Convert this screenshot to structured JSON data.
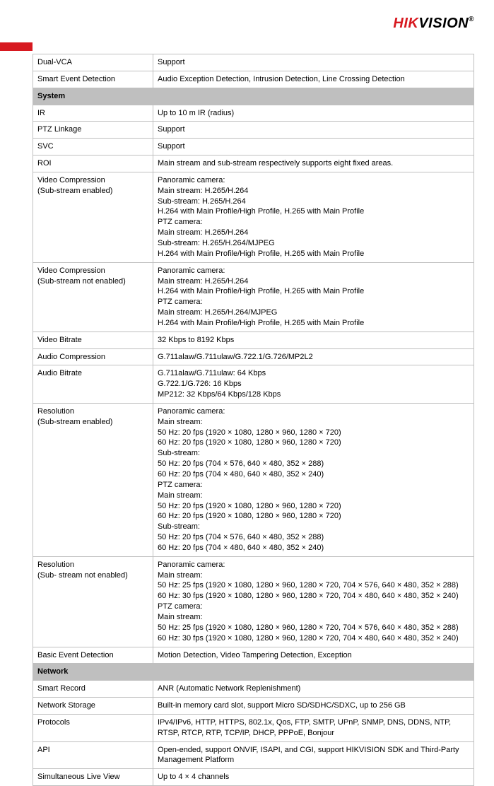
{
  "logo": {
    "part1": "HIK",
    "part2": "VISION",
    "reg": "®"
  },
  "table": {
    "rows": [
      {
        "type": "kv",
        "key": "Dual-VCA",
        "value": "Support"
      },
      {
        "type": "kv",
        "key": "Smart Event Detection",
        "value": "Audio Exception Detection, Intrusion Detection, Line Crossing Detection"
      },
      {
        "type": "section",
        "title": "System"
      },
      {
        "type": "kv",
        "key": "IR",
        "value": "Up to 10 m IR (radius)"
      },
      {
        "type": "kv",
        "key": "PTZ Linkage",
        "value": "Support"
      },
      {
        "type": "kv",
        "key": "SVC",
        "value": "Support"
      },
      {
        "type": "kv",
        "key": "ROI",
        "value": "Main stream and sub-stream respectively supports eight fixed areas."
      },
      {
        "type": "kv",
        "key": "Video Compression\n(Sub-stream enabled)",
        "value": "Panoramic camera:\nMain stream: H.265/H.264\nSub-stream: H.265/H.264\nH.264 with Main Profile/High Profile, H.265 with Main Profile\nPTZ camera:\nMain stream: H.265/H.264\nSub-stream: H.265/H.264/MJPEG\nH.264 with Main Profile/High Profile, H.265 with Main Profile"
      },
      {
        "type": "kv",
        "key": "Video Compression\n(Sub-stream not enabled)",
        "value": "Panoramic camera:\nMain stream: H.265/H.264\nH.264 with Main Profile/High Profile, H.265 with Main Profile\nPTZ camera:\nMain stream: H.265/H.264/MJPEG\nH.264 with Main Profile/High Profile, H.265 with Main Profile"
      },
      {
        "type": "kv",
        "key": "Video Bitrate",
        "value": "32 Kbps to 8192 Kbps"
      },
      {
        "type": "kv",
        "key": "Audio Compression",
        "value": "G.711alaw/G.711ulaw/G.722.1/G.726/MP2L2"
      },
      {
        "type": "kv",
        "key": "Audio Bitrate",
        "value": "G.711alaw/G.711ulaw: 64 Kbps\nG.722.1/G.726: 16 Kbps\nMP212: 32 Kbps/64 Kbps/128 Kbps"
      },
      {
        "type": "kv",
        "key": "Resolution\n(Sub-stream enabled)",
        "value": "Panoramic camera:\nMain stream:\n50 Hz: 20 fps (1920 × 1080, 1280 × 960, 1280 × 720)\n60 Hz: 20 fps (1920 × 1080, 1280 × 960, 1280 × 720)\nSub-stream:\n50 Hz: 20 fps (704 × 576, 640 × 480, 352 × 288)\n60 Hz: 20 fps (704 × 480, 640 × 480, 352 × 240)\nPTZ camera:\nMain stream:\n50 Hz: 20 fps (1920 × 1080, 1280 × 960, 1280 × 720)\n60 Hz: 20 fps (1920 × 1080, 1280 × 960, 1280 × 720)\nSub-stream:\n50 Hz: 20 fps (704 × 576, 640 × 480, 352 × 288)\n60 Hz: 20 fps (704 × 480, 640 × 480, 352 × 240)"
      },
      {
        "type": "kv",
        "key": "Resolution\n(Sub- stream not enabled)",
        "value": "Panoramic camera:\nMain stream:\n50 Hz: 25 fps (1920 × 1080, 1280 × 960, 1280 × 720, 704 × 576, 640 × 480, 352 × 288)\n60 Hz: 30 fps (1920 × 1080, 1280 × 960, 1280 × 720, 704 × 480, 640 × 480, 352 × 240)\nPTZ camera:\nMain stream:\n50 Hz: 25 fps (1920 × 1080, 1280 × 960, 1280 × 720, 704 × 576, 640 × 480, 352 × 288)\n60 Hz: 30 fps (1920 × 1080, 1280 × 960, 1280 × 720, 704 × 480, 640 × 480, 352 × 240)"
      },
      {
        "type": "kv",
        "key": "Basic Event Detection",
        "value": "Motion Detection, Video Tampering Detection, Exception"
      },
      {
        "type": "section",
        "title": "Network"
      },
      {
        "type": "kv",
        "key": "Smart Record",
        "value": "ANR (Automatic Network Replenishment)"
      },
      {
        "type": "kv",
        "key": "Network Storage",
        "value": "Built-in memory card slot, support Micro SD/SDHC/SDXC, up to 256 GB"
      },
      {
        "type": "kv",
        "key": "Protocols",
        "value": "IPv4/IPv6, HTTP, HTTPS, 802.1x, Qos, FTP, SMTP, UPnP, SNMP, DNS, DDNS, NTP, RTSP, RTCP, RTP, TCP/IP, DHCP, PPPoE, Bonjour"
      },
      {
        "type": "kv",
        "key": "API",
        "value": "Open-ended, support ONVIF, ISAPI, and CGI, support HIKVISION SDK and Third-Party Management Platform"
      },
      {
        "type": "kv",
        "key": "Simultaneous Live View",
        "value": "Up to 4 × 4 channels"
      }
    ]
  }
}
